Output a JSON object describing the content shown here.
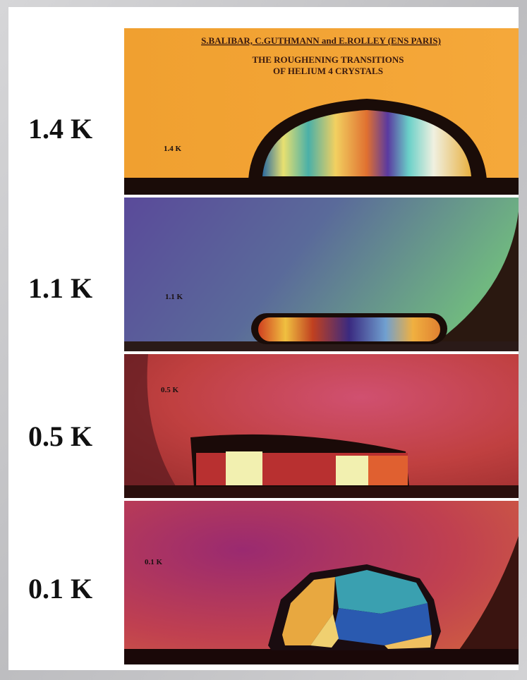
{
  "header": {
    "credit": "S.BALIBAR, C.GUTHMANN and E.ROLLEY (ENS PARIS)",
    "title_lines": [
      "THE ROUGHENING TRANSITIONS",
      "OF HELIUM 4 CRYSTALS"
    ]
  },
  "panels": [
    {
      "label": "1.4 K",
      "inner_label": "1.4 K"
    },
    {
      "label": "1.1 K",
      "inner_label": "1.1 K"
    },
    {
      "label": "0.5 K",
      "inner_label": "0.5 K"
    },
    {
      "label": "0.1 K",
      "inner_label": "0.1 K"
    }
  ]
}
